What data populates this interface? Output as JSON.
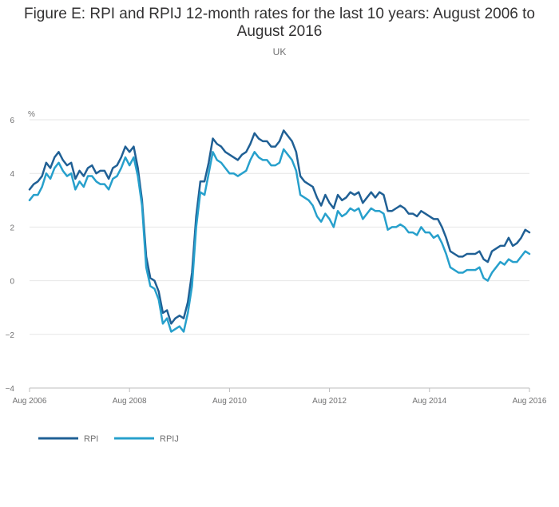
{
  "chart_data": {
    "type": "line",
    "title": "Figure E: RPI and RPIJ 12-month rates for the last 10 years: August 2006 to August 2016",
    "subtitle": "UK",
    "ylabel": "%",
    "xlabel": "",
    "ylim": [
      -4,
      6
    ],
    "yticks": [
      6,
      4,
      2,
      0,
      -2,
      -4
    ],
    "xticks": [
      "Aug 2006",
      "Aug 2008",
      "Aug 2010",
      "Aug 2012",
      "Aug 2014",
      "Aug 2016"
    ],
    "grid": true,
    "legend_position": "bottom-left",
    "series": [
      {
        "name": "RPI",
        "color": "#206095",
        "values": [
          3.4,
          3.6,
          3.7,
          3.9,
          4.4,
          4.2,
          4.6,
          4.8,
          4.5,
          4.3,
          4.4,
          3.8,
          4.1,
          3.9,
          4.2,
          4.3,
          4.0,
          4.1,
          4.1,
          3.8,
          4.2,
          4.3,
          4.6,
          5.0,
          4.8,
          5.0,
          4.2,
          3.0,
          0.9,
          0.1,
          0.0,
          -0.4,
          -1.2,
          -1.1,
          -1.6,
          -1.4,
          -1.3,
          -1.4,
          -0.8,
          0.3,
          2.4,
          3.7,
          3.7,
          4.4,
          5.3,
          5.1,
          5.0,
          4.8,
          4.7,
          4.6,
          4.5,
          4.7,
          4.8,
          5.1,
          5.5,
          5.3,
          5.2,
          5.2,
          5.0,
          5.0,
          5.2,
          5.6,
          5.4,
          5.2,
          4.8,
          3.9,
          3.7,
          3.6,
          3.5,
          3.1,
          2.8,
          3.2,
          2.9,
          2.7,
          3.2,
          3.0,
          3.1,
          3.3,
          3.2,
          3.3,
          2.9,
          3.1,
          3.3,
          3.1,
          3.3,
          3.2,
          2.6,
          2.6,
          2.7,
          2.8,
          2.7,
          2.5,
          2.5,
          2.4,
          2.6,
          2.5,
          2.4,
          2.3,
          2.3,
          2.0,
          1.6,
          1.1,
          1.0,
          0.9,
          0.9,
          1.0,
          1.0,
          1.0,
          1.1,
          0.8,
          0.7,
          1.1,
          1.2,
          1.3,
          1.3,
          1.6,
          1.3,
          1.4,
          1.6,
          1.9,
          1.8
        ]
      },
      {
        "name": "RPIJ",
        "color": "#27a0cc",
        "values": [
          3.0,
          3.2,
          3.2,
          3.5,
          4.0,
          3.8,
          4.2,
          4.4,
          4.1,
          3.9,
          4.0,
          3.4,
          3.7,
          3.5,
          3.9,
          3.9,
          3.7,
          3.6,
          3.6,
          3.4,
          3.8,
          3.9,
          4.2,
          4.6,
          4.3,
          4.6,
          3.9,
          2.8,
          0.5,
          -0.2,
          -0.3,
          -0.7,
          -1.6,
          -1.4,
          -1.9,
          -1.8,
          -1.7,
          -1.9,
          -1.2,
          -0.2,
          2.0,
          3.3,
          3.2,
          4.0,
          4.8,
          4.5,
          4.4,
          4.2,
          4.0,
          4.0,
          3.9,
          4.0,
          4.1,
          4.5,
          4.8,
          4.6,
          4.5,
          4.5,
          4.3,
          4.3,
          4.4,
          4.9,
          4.7,
          4.5,
          4.1,
          3.2,
          3.1,
          3.0,
          2.8,
          2.4,
          2.2,
          2.5,
          2.3,
          2.0,
          2.6,
          2.4,
          2.5,
          2.7,
          2.6,
          2.7,
          2.3,
          2.5,
          2.7,
          2.6,
          2.6,
          2.5,
          1.9,
          2.0,
          2.0,
          2.1,
          2.0,
          1.8,
          1.8,
          1.7,
          2.0,
          1.8,
          1.8,
          1.6,
          1.7,
          1.4,
          1.0,
          0.5,
          0.4,
          0.3,
          0.3,
          0.4,
          0.4,
          0.4,
          0.5,
          0.1,
          0.0,
          0.3,
          0.5,
          0.7,
          0.6,
          0.8,
          0.7,
          0.7,
          0.9,
          1.1,
          1.0
        ]
      }
    ]
  }
}
